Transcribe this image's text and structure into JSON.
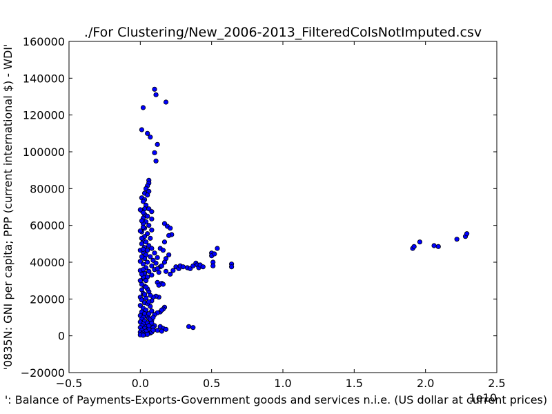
{
  "chart_data": {
    "type": "scatter",
    "title": "./For Clustering/New_2006-2013_FilteredColsNotImputed.csv",
    "xlabel": "': Balance of Payments-Exports-Government goods and services n.i.e. (US dollar at current prices)",
    "ylabel": "'0835N: GNI per capita; PPP  (current international $) - WDI'",
    "x_offset_label": "1e10",
    "xlim": [
      -0.5,
      2.5
    ],
    "ylim": [
      -20000,
      160000
    ],
    "xticks": [
      -0.5,
      0.0,
      0.5,
      1.0,
      1.5,
      2.0,
      2.5
    ],
    "xtick_labels": [
      "−0.5",
      "0.0",
      "0.5",
      "1.0",
      "1.5",
      "2.0",
      "2.5"
    ],
    "yticks": [
      -20000,
      0,
      20000,
      40000,
      60000,
      80000,
      100000,
      120000,
      140000,
      160000
    ],
    "ytick_labels": [
      "−20000",
      "0",
      "20000",
      "40000",
      "60000",
      "80000",
      "100000",
      "120000",
      "140000",
      "160000"
    ],
    "grid": false,
    "marker_color": "#0000ff",
    "marker_edge": "#000000",
    "series": [
      {
        "points": [
          [
            0.1,
            134000
          ],
          [
            0.11,
            131000
          ],
          [
            0.18,
            127000
          ],
          [
            0.02,
            124000
          ],
          [
            0.01,
            112000
          ],
          [
            0.05,
            110000
          ],
          [
            0.07,
            108000
          ],
          [
            0.12,
            104000
          ],
          [
            0.1,
            99500
          ],
          [
            0.11,
            95000
          ],
          [
            0.06,
            84500
          ],
          [
            0.06,
            83000
          ],
          [
            0.05,
            81500
          ],
          [
            0.04,
            80000
          ],
          [
            0.06,
            78500
          ],
          [
            0.03,
            77500
          ],
          [
            0.05,
            76500
          ],
          [
            0.01,
            75000
          ],
          [
            0.03,
            74000
          ],
          [
            0.02,
            73000
          ],
          [
            0.04,
            71000
          ],
          [
            0.03,
            69000
          ],
          [
            0.01,
            68000
          ],
          [
            0.06,
            69000
          ],
          [
            0.08,
            67500
          ],
          [
            0.03,
            66000
          ],
          [
            0.05,
            65000
          ],
          [
            0.02,
            64000
          ],
          [
            0.08,
            63500
          ],
          [
            0.04,
            62000
          ],
          [
            0.02,
            61000
          ],
          [
            0.06,
            60000
          ],
          [
            0.03,
            58500
          ],
          [
            0.08,
            57500
          ],
          [
            0.01,
            56500
          ],
          [
            0.05,
            55500
          ],
          [
            0.03,
            54000
          ],
          [
            0.07,
            53000
          ],
          [
            0.02,
            52000
          ],
          [
            0.04,
            51000
          ],
          [
            0.01,
            50000
          ],
          [
            0.06,
            49000
          ],
          [
            0.03,
            48000
          ],
          [
            0.08,
            47500
          ],
          [
            0.05,
            46500
          ],
          [
            0.02,
            45500
          ],
          [
            0.1,
            45000
          ],
          [
            0.04,
            44000
          ],
          [
            0.07,
            43000
          ],
          [
            0.12,
            42500
          ],
          [
            0.03,
            42000
          ],
          [
            0.09,
            41000
          ],
          [
            0.05,
            40000
          ],
          [
            0.11,
            39500
          ],
          [
            0.02,
            39000
          ],
          [
            0.08,
            38000
          ],
          [
            0.14,
            37500
          ],
          [
            0.04,
            37000
          ],
          [
            0.1,
            36000
          ],
          [
            0.06,
            35000
          ],
          [
            0.13,
            34500
          ],
          [
            0.03,
            34000
          ],
          [
            0.08,
            33000
          ],
          [
            0.05,
            32000
          ],
          [
            0.02,
            31000
          ],
          [
            0.04,
            30000
          ],
          [
            0.12,
            29000
          ],
          [
            0.15,
            28500
          ],
          [
            0.13,
            27500
          ],
          [
            0.16,
            28000
          ],
          [
            0.03,
            27000
          ],
          [
            0.17,
            61000
          ],
          [
            0.19,
            59500
          ],
          [
            0.21,
            58500
          ],
          [
            0.22,
            55000
          ],
          [
            0.2,
            54500
          ],
          [
            0.17,
            51000
          ],
          [
            0.14,
            47500
          ],
          [
            0.16,
            46500
          ],
          [
            0.2,
            44000
          ],
          [
            0.18,
            42000
          ],
          [
            0.17,
            40000
          ],
          [
            0.15,
            38000
          ],
          [
            0.12,
            36500
          ],
          [
            0.18,
            35000
          ],
          [
            0.21,
            33500
          ],
          [
            0.23,
            35500
          ],
          [
            0.25,
            37500
          ],
          [
            0.27,
            36500
          ],
          [
            0.28,
            38000
          ],
          [
            0.3,
            37500
          ],
          [
            0.33,
            37000
          ],
          [
            0.35,
            36500
          ],
          [
            0.37,
            38000
          ],
          [
            0.39,
            39500
          ],
          [
            0.4,
            38500
          ],
          [
            0.41,
            37000
          ],
          [
            0.42,
            38500
          ],
          [
            0.44,
            37500
          ],
          [
            0.5,
            45000
          ],
          [
            0.5,
            43500
          ],
          [
            0.52,
            44500
          ],
          [
            0.54,
            47500
          ],
          [
            0.51,
            40000
          ],
          [
            0.51,
            38000
          ],
          [
            0.64,
            39000
          ],
          [
            0.64,
            37500
          ],
          [
            1.91,
            47500
          ],
          [
            1.92,
            48500
          ],
          [
            1.96,
            51000
          ],
          [
            2.06,
            49000
          ],
          [
            2.09,
            48500
          ],
          [
            2.22,
            52500
          ],
          [
            2.28,
            54000
          ],
          [
            2.29,
            55500
          ],
          [
            0.34,
            5000
          ],
          [
            0.37,
            4500
          ],
          [
            0.14,
            5000
          ],
          [
            0.16,
            4000
          ],
          [
            0.18,
            3500
          ],
          [
            0.1,
            5500
          ],
          [
            0.12,
            3000
          ],
          [
            0.15,
            2500
          ],
          [
            0.17,
            15500
          ],
          [
            0.16,
            14500
          ],
          [
            0.14,
            13000
          ],
          [
            0.12,
            12500
          ],
          [
            0.1,
            11500
          ],
          [
            0.15,
            14000
          ],
          [
            0.13,
            21000
          ],
          [
            0.11,
            21500
          ],
          [
            0.09,
            21000
          ],
          [
            0.07,
            22000
          ],
          [
            0.06,
            24000
          ],
          [
            0.05,
            25500
          ],
          [
            0.04,
            26500
          ],
          [
            0.01,
            25000
          ],
          [
            0.02,
            23000
          ],
          [
            0.0,
            21000
          ],
          [
            0.01,
            19500
          ],
          [
            0.03,
            18000
          ],
          [
            0.0,
            16500
          ],
          [
            0.02,
            15000
          ],
          [
            0.04,
            14000
          ],
          [
            0.01,
            13000
          ],
          [
            0.03,
            12000
          ],
          [
            0.0,
            11000
          ],
          [
            0.05,
            10500
          ],
          [
            0.02,
            10000
          ],
          [
            0.06,
            9500
          ],
          [
            0.01,
            9000
          ],
          [
            0.08,
            8500
          ],
          [
            0.03,
            8000
          ],
          [
            0.0,
            7500
          ],
          [
            0.05,
            7000
          ],
          [
            0.02,
            6500
          ],
          [
            0.07,
            6000
          ],
          [
            0.01,
            5500
          ],
          [
            0.04,
            5000
          ],
          [
            0.0,
            4500
          ],
          [
            0.09,
            4500
          ],
          [
            0.03,
            4000
          ],
          [
            0.06,
            3500
          ],
          [
            0.01,
            3000
          ],
          [
            0.04,
            2500
          ],
          [
            0.0,
            2000
          ],
          [
            0.02,
            1500
          ],
          [
            0.07,
            1500
          ],
          [
            0.01,
            1000
          ],
          [
            0.03,
            700
          ],
          [
            0.0,
            500
          ],
          [
            0.05,
            800
          ],
          [
            0.02,
            300
          ],
          [
            0.08,
            2000
          ],
          [
            0.09,
            3000
          ],
          [
            0.06,
            5500
          ],
          [
            0.08,
            7000
          ],
          [
            0.07,
            9000
          ],
          [
            0.09,
            10000
          ],
          [
            0.06,
            12000
          ],
          [
            0.08,
            13500
          ],
          [
            0.07,
            16000
          ],
          [
            0.05,
            17500
          ],
          [
            0.08,
            19000
          ],
          [
            0.04,
            20500
          ],
          [
            0.06,
            18500
          ],
          [
            0.03,
            22500
          ],
          [
            0.01,
            28000
          ],
          [
            0.0,
            30000
          ],
          [
            0.02,
            32000
          ],
          [
            0.01,
            33500
          ],
          [
            0.0,
            35500
          ],
          [
            0.02,
            36000
          ],
          [
            0.0,
            40500
          ],
          [
            0.01,
            43000
          ],
          [
            0.0,
            46500
          ],
          [
            0.02,
            47000
          ],
          [
            0.01,
            53000
          ],
          [
            0.0,
            57000
          ],
          [
            0.02,
            59000
          ],
          [
            0.01,
            62500
          ],
          [
            0.02,
            67000
          ],
          [
            0.0,
            68500
          ]
        ]
      }
    ]
  }
}
